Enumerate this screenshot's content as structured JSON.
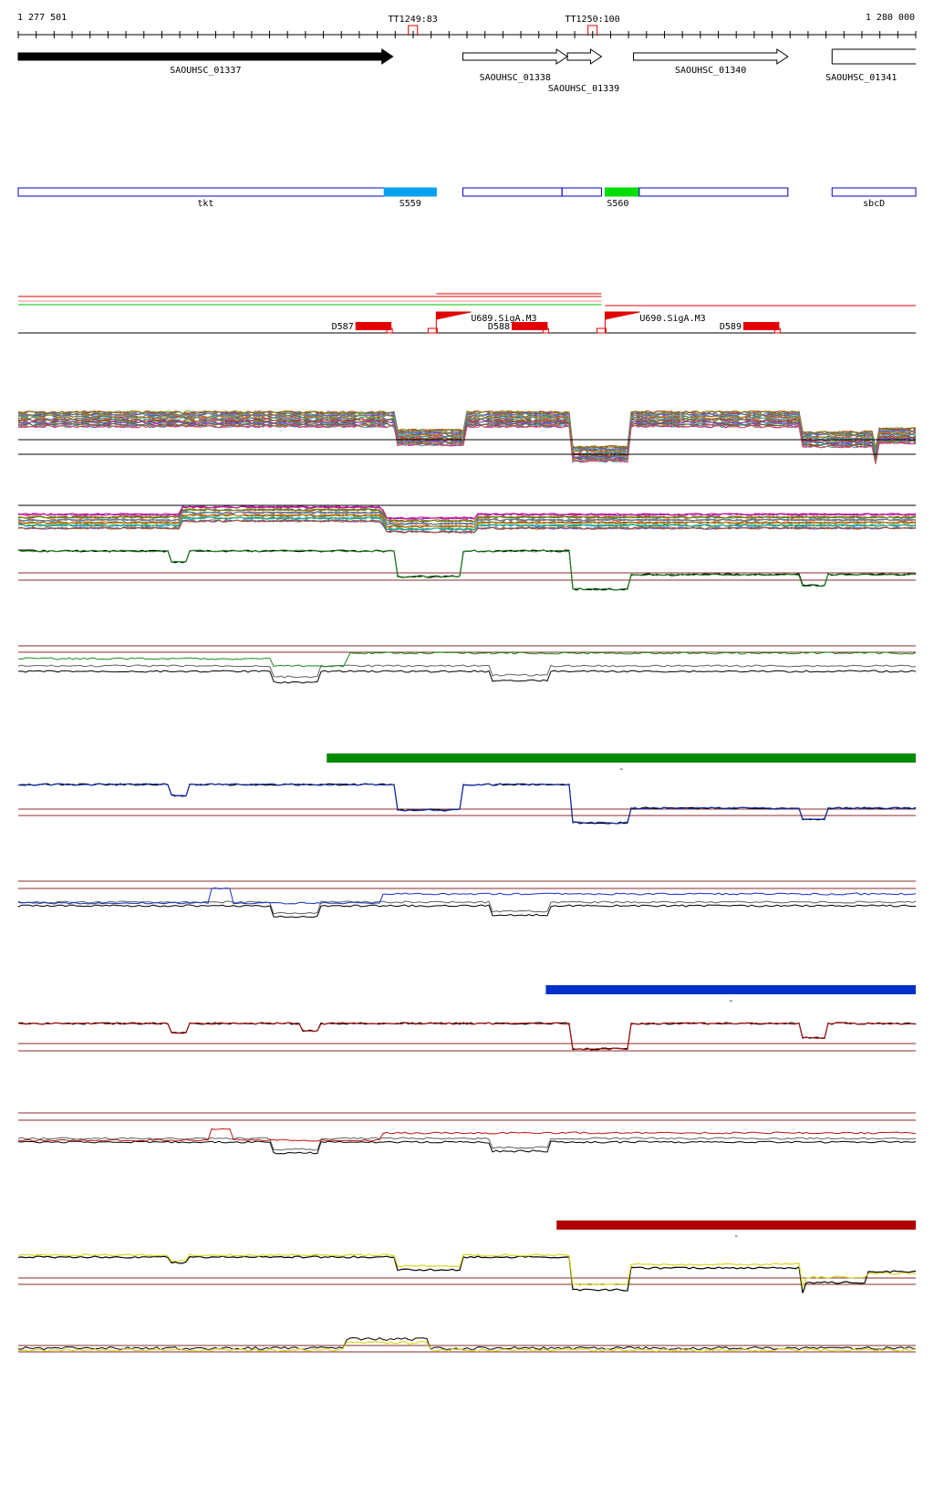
{
  "ruler": {
    "start_label": "1 277 501",
    "end_label": "1 280 000",
    "start": 1277501,
    "end": 1280000,
    "terminators": [
      {
        "label": "TT1249:83",
        "pos": 1278600
      },
      {
        "label": "TT1250:100",
        "pos": 1279100
      }
    ]
  },
  "genes": [
    {
      "name": "SAOUHSC_01337",
      "start": 1277501,
      "end": 1278544,
      "strand": "+",
      "filled": true
    },
    {
      "name": "SAOUHSC_01338",
      "start": 1278739,
      "end": 1279030,
      "strand": "+",
      "filled": false
    },
    {
      "name": "SAOUHSC_01339",
      "start": 1279030,
      "end": 1279125,
      "strand": "+",
      "filled": false
    },
    {
      "name": "SAOUHSC_01340",
      "start": 1279214,
      "end": 1279644,
      "strand": "+",
      "filled": false
    },
    {
      "name": "SAOUHSC_01341",
      "start": 1279767,
      "end": 1280000,
      "strand": "+",
      "filled": false
    }
  ],
  "annotations": [
    {
      "label": "tkt",
      "start": 1277501,
      "end": 1278544,
      "color": "#0000cc",
      "fill": "none"
    },
    {
      "label": "S559",
      "start": 1278520,
      "end": 1278665,
      "color": "#00a0f0",
      "fill": "#00a0f0"
    },
    {
      "label": "",
      "start": 1278739,
      "end": 1279015,
      "color": "#0000cc",
      "fill": "none"
    },
    {
      "label": "",
      "start": 1279015,
      "end": 1279125,
      "color": "#0000cc",
      "fill": "none"
    },
    {
      "label": "S560",
      "start": 1279135,
      "end": 1279230,
      "color": "#00dd00",
      "fill": "#00dd00"
    },
    {
      "label": "",
      "start": 1279230,
      "end": 1279644,
      "color": "#0000cc",
      "fill": "none"
    },
    {
      "label": "sbcD",
      "start": 1279767,
      "end": 1280000,
      "color": "#0000cc",
      "fill": "none"
    }
  ],
  "promoters": [
    {
      "label": "U689.SigA.M3",
      "pos": 1278665
    },
    {
      "label": "U690.SigA.M3",
      "pos": 1279135
    }
  ],
  "downregulated": [
    {
      "label": "D587",
      "start": 1278440,
      "end": 1278540
    },
    {
      "label": "D588",
      "start": 1278875,
      "end": 1278975
    },
    {
      "label": "D589",
      "start": 1279520,
      "end": 1279620
    }
  ],
  "expression_colors": {
    "track_a": "#1a8c1a",
    "track_b": "#1030c0",
    "track_c": "#c01010",
    "track_d": "#d8d820",
    "reference": "#000000",
    "threshold": "#8b2b2b"
  },
  "condition_bars": [
    {
      "label": "-",
      "color": "#008a00",
      "start": 1278360,
      "end": 1280000
    },
    {
      "label": "-",
      "color": "#0030c8",
      "start": 1278970,
      "end": 1280000
    },
    {
      "label": "-",
      "color": "#b00000",
      "start": 1279000,
      "end": 1280000
    }
  ]
}
